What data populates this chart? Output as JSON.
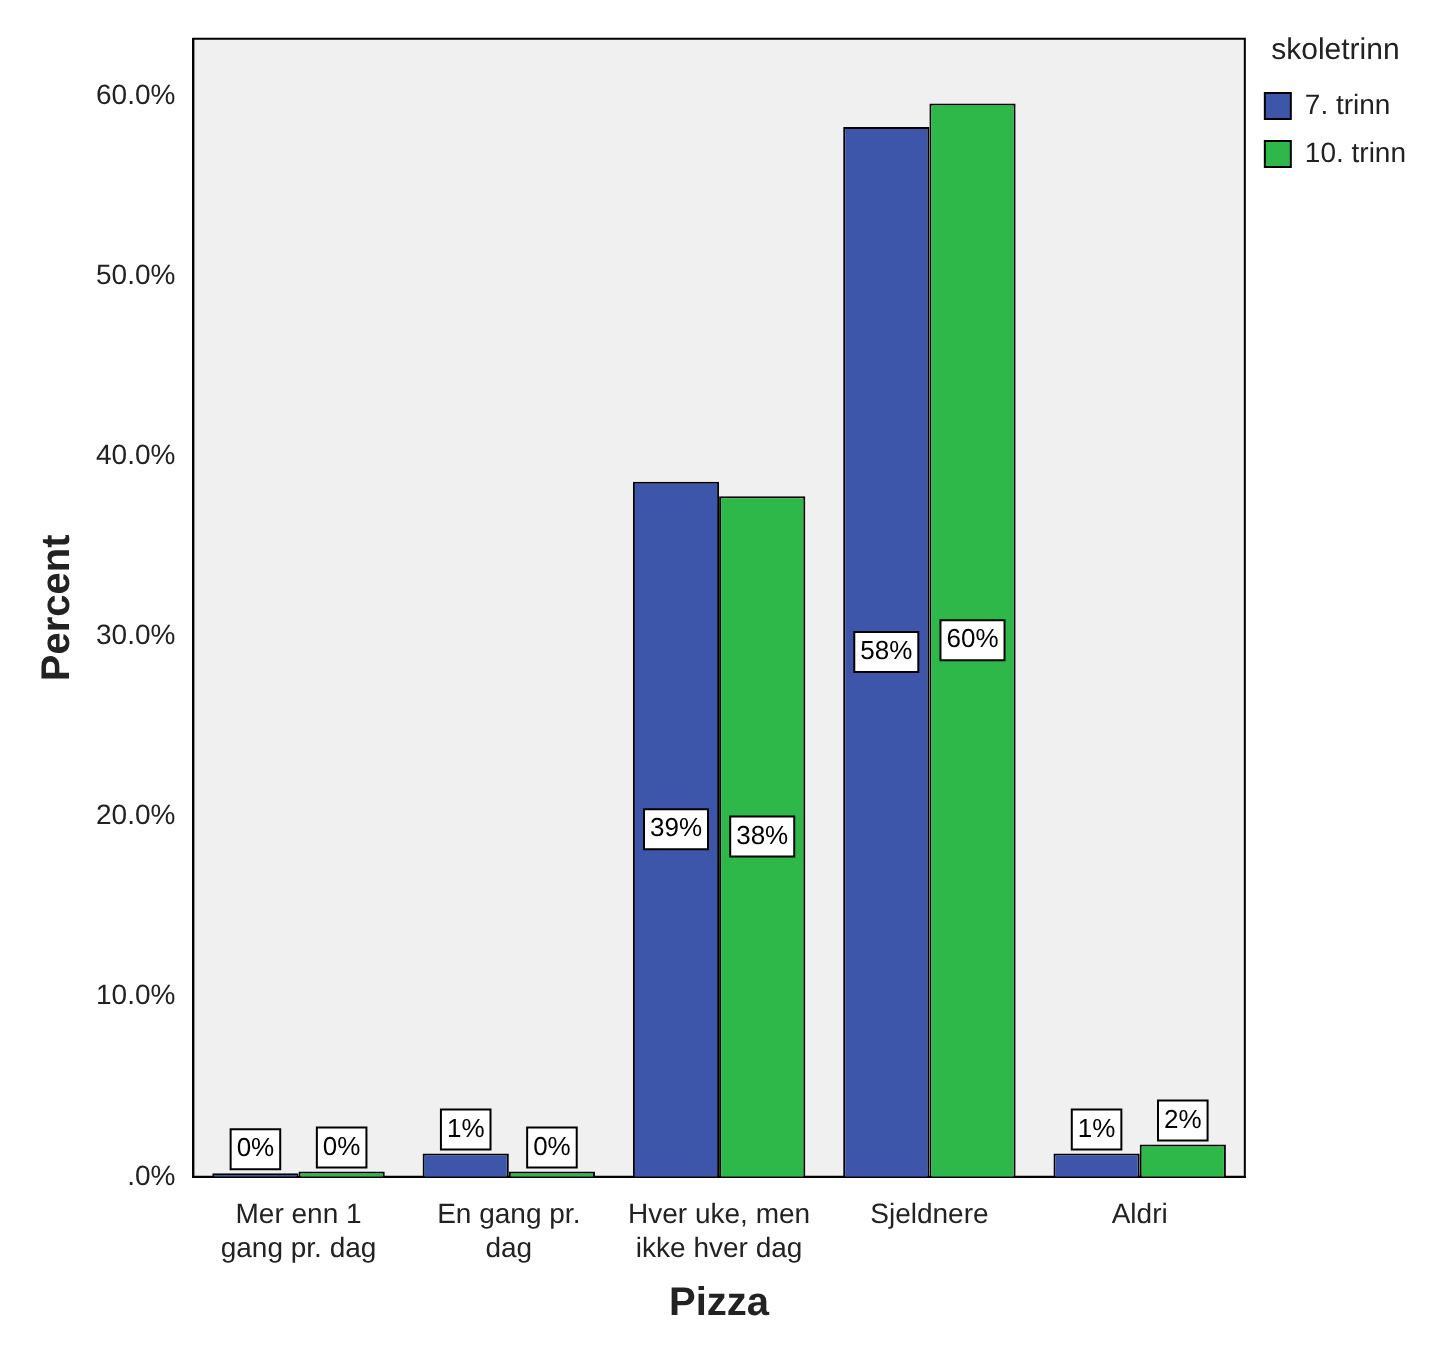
{
  "chart_data": {
    "type": "bar",
    "xlabel": "Pizza",
    "ylabel": "Percent",
    "legend_title": "skoletrinn",
    "legend": "right",
    "categories": [
      "Mer enn 1 gang pr. dag",
      "En gang pr. dag",
      "Hver uke, men ikke hver dag",
      "Sjeldnere",
      "Aldri"
    ],
    "series": [
      {
        "name": "7. trinn",
        "color": "#3e56a9",
        "values": [
          0.2,
          1.3,
          38.6,
          58.3,
          1.3
        ],
        "value_labels": [
          "0%",
          "1%",
          "39%",
          "58%",
          "1%"
        ]
      },
      {
        "name": "10. trinn",
        "color": "#2fb84a",
        "values": [
          0.3,
          0.3,
          37.8,
          59.6,
          1.8
        ],
        "value_labels": [
          "0%",
          "0%",
          "38%",
          "60%",
          "2%"
        ]
      }
    ],
    "ylim": [
      0,
      63.2
    ],
    "yticks": [
      {
        "value": 0,
        "label": ".0%"
      },
      {
        "value": 10,
        "label": "10.0%"
      },
      {
        "value": 20,
        "label": "20.0%"
      },
      {
        "value": 30,
        "label": "30.0%"
      },
      {
        "value": 40,
        "label": "40.0%"
      },
      {
        "value": 50,
        "label": "50.0%"
      },
      {
        "value": 60,
        "label": "60.0%"
      }
    ],
    "grid": false
  }
}
